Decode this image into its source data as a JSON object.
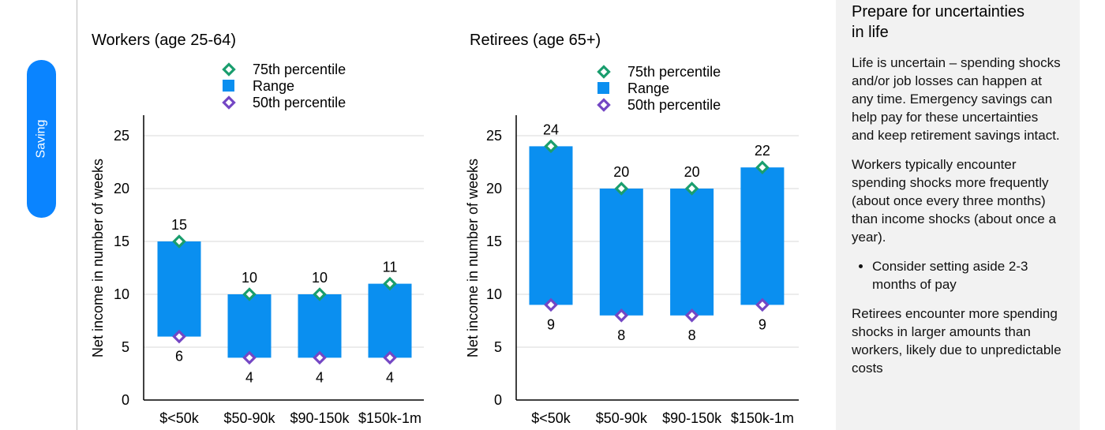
{
  "sidebar": {
    "tab_label": "Saving"
  },
  "chart_data": [
    {
      "type": "bar",
      "title": "Workers (age 25-64)",
      "ylabel": "Net income in number of weeks",
      "categories": [
        "$<50k",
        "$50-90k",
        "$90-150k",
        "$150k-1m"
      ],
      "yticks": [
        "0",
        "5",
        "10",
        "15",
        "20",
        "25"
      ],
      "ylim": [
        0,
        27
      ],
      "grid": true,
      "legend": [
        "75th percentile",
        "Range",
        "50th percentile"
      ],
      "series": [
        {
          "name": "75th percentile",
          "values": [
            15,
            10,
            10,
            11
          ]
        },
        {
          "name": "50th percentile",
          "values": [
            6,
            4,
            4,
            4
          ]
        }
      ],
      "range_high_labels": [
        "15",
        "10",
        "10",
        "11"
      ],
      "range_low_labels": [
        "6",
        "4",
        "4",
        "4"
      ]
    },
    {
      "type": "bar",
      "title": "Retirees (age 65+)",
      "ylabel": "Net income in number of weeks",
      "categories": [
        "$<50k",
        "$50-90k",
        "$90-150k",
        "$150k-1m"
      ],
      "yticks": [
        "0",
        "5",
        "10",
        "15",
        "20",
        "25"
      ],
      "ylim": [
        0,
        27
      ],
      "grid": true,
      "legend": [
        "75th percentile",
        "Range",
        "50th percentile"
      ],
      "series": [
        {
          "name": "75th percentile",
          "values": [
            24,
            20,
            20,
            22
          ]
        },
        {
          "name": "50th percentile",
          "values": [
            9,
            8,
            8,
            9
          ]
        }
      ],
      "range_high_labels": [
        "24",
        "20",
        "20",
        "22"
      ],
      "range_low_labels": [
        "9",
        "8",
        "8",
        "9"
      ]
    }
  ],
  "colors": {
    "bar": "#0a8ff0",
    "p75_marker": "#1a9e6e",
    "p50_marker": "#7447c4",
    "grid": "#d9d9d9",
    "side_tab": "#0a84ff",
    "panel_bg": "#f2f2f2"
  },
  "panel": {
    "title": "Prepare for uncertainties in life",
    "para1": "Life is uncertain – spending shocks and/or job losses can happen at any time. Emergency savings can help pay for these uncertainties and keep retirement savings intact.",
    "para2": "Workers typically encounter spending shocks more frequently (about once every three months) than income shocks (about once a year).",
    "bullet1": "Consider setting aside 2-3 months of pay",
    "para3": "Retirees encounter more spending shocks in larger amounts than workers, likely due to unpredictable costs"
  }
}
